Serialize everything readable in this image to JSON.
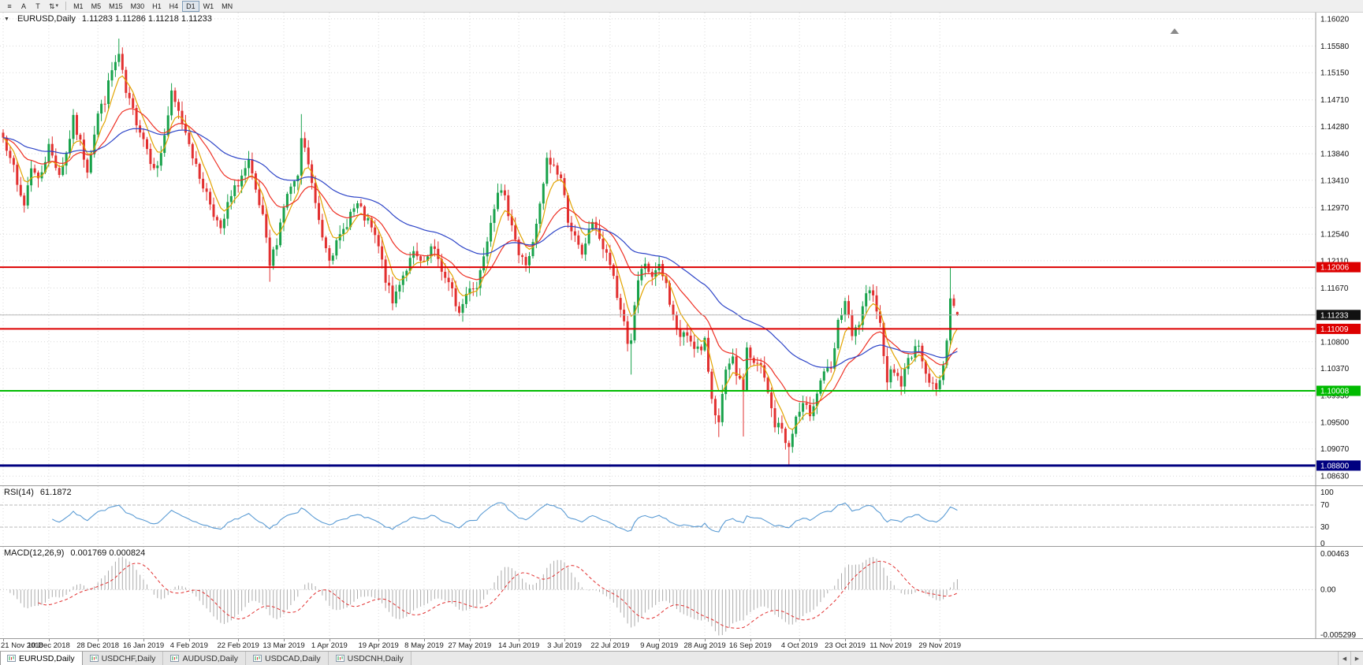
{
  "toolbar": {
    "icons": {
      "menu": "≡",
      "a": "A",
      "t": "T",
      "arrows": "⇅",
      "caret": "▾"
    },
    "timeframes": [
      {
        "label": "M1"
      },
      {
        "label": "M5"
      },
      {
        "label": "M15"
      },
      {
        "label": "M30"
      },
      {
        "label": "H1"
      },
      {
        "label": "H4"
      },
      {
        "label": "D1",
        "active": true
      },
      {
        "label": "W1"
      },
      {
        "label": "MN"
      }
    ]
  },
  "chart_header": {
    "collapse_icon": "▼",
    "symbol": "EURUSD,Daily",
    "ohlc": "1.11283 1.11286 1.11218 1.11233"
  },
  "rsi": {
    "title": "RSI(14)",
    "value": "61.1872",
    "period": 14,
    "color": "#5a9bd4",
    "levels": [
      30,
      70
    ],
    "axis_labels": [
      {
        "t": "100",
        "v": 100
      },
      {
        "t": "70",
        "v": 70
      },
      {
        "t": "30",
        "v": 30
      },
      {
        "t": "0",
        "v": 0
      }
    ]
  },
  "macd": {
    "title": "MACD(12,26,9)",
    "values": "0.001769 0.000824",
    "fast": 12,
    "slow": 26,
    "signal": 9,
    "axis": {
      "max": 0.00463,
      "min": -0.005299,
      "labels": [
        {
          "t": "0.00463",
          "v": 0.00463
        },
        {
          "t": "0.00",
          "v": 0
        },
        {
          "t": "-0.005299",
          "v": -0.005299
        }
      ]
    }
  },
  "tabbar": {
    "left_arrow": "◀",
    "right_arrow": "▶",
    "tabs": [
      {
        "label": "EURUSD,Daily",
        "active": true
      },
      {
        "label": "USDCHF,Daily"
      },
      {
        "label": "AUDUSD,Daily"
      },
      {
        "label": "USDCAD,Daily"
      },
      {
        "label": "USDCNH,Daily"
      }
    ]
  },
  "chart_data": {
    "type": "candlestick",
    "symbol": "EURUSD",
    "timeframe": "Daily",
    "bar_count": 273,
    "price_range": [
      1.0848,
      1.1612
    ],
    "price_axis_labels": [
      "1.16020",
      "1.15580",
      "1.15150",
      "1.14710",
      "1.14280",
      "1.13840",
      "1.13410",
      "1.12970",
      "1.12540",
      "1.12110",
      "1.11670",
      "1.11240",
      "1.10800",
      "1.10370",
      "1.09930",
      "1.09500",
      "1.09070",
      "1.08630"
    ],
    "date_axis": [
      [
        "21 Nov 2018",
        0
      ],
      [
        "10 Dec 2018",
        13
      ],
      [
        "28 Dec 2018",
        27
      ],
      [
        "16 Jan 2019",
        40
      ],
      [
        "4 Feb 2019",
        53
      ],
      [
        "22 Feb 2019",
        67
      ],
      [
        "13 Mar 2019",
        80
      ],
      [
        "1 Apr 2019",
        93
      ],
      [
        "19 Apr 2019",
        107
      ],
      [
        "8 May 2019",
        120
      ],
      [
        "27 May 2019",
        133
      ],
      [
        "14 Jun 2019",
        147
      ],
      [
        "3 Jul 2019",
        160
      ],
      [
        "22 Jul 2019",
        173
      ],
      [
        "9 Aug 2019",
        187
      ],
      [
        "28 Aug 2019",
        200
      ],
      [
        "16 Sep 2019",
        213
      ],
      [
        "4 Oct 2019",
        227
      ],
      [
        "23 Oct 2019",
        240
      ],
      [
        "11 Nov 2019",
        253
      ],
      [
        "29 Nov 2019",
        267
      ]
    ],
    "horizontal_lines": [
      {
        "value": 1.12006,
        "label": "1.12006",
        "color": "#dd0000",
        "width": 2
      },
      {
        "value": 1.11009,
        "label": "1.11009",
        "color": "#dd0000",
        "width": 2
      },
      {
        "value": 1.10008,
        "label": "1.10008",
        "color": "#00bb00",
        "width": 2
      },
      {
        "value": 1.088,
        "label": "1.08800",
        "color": "#000080",
        "width": 3
      }
    ],
    "current_price": {
      "value": 1.11233,
      "label": "1.11233",
      "badge": "#111111",
      "line_color": "#b8b8b8"
    },
    "candle_colors": {
      "up": "#18a24b",
      "down": "#e23030"
    },
    "moving_averages": [
      {
        "type": "ema",
        "period": 6,
        "color": "#e2a400"
      },
      {
        "type": "ema",
        "period": 20,
        "color": "#ee3024"
      },
      {
        "type": "ema",
        "period": 52,
        "color": "#2e45c8"
      }
    ],
    "waypoints": [
      [
        0,
        1.141
      ],
      [
        2,
        1.1385
      ],
      [
        4,
        1.133
      ],
      [
        6,
        1.1302
      ],
      [
        8,
        1.1365
      ],
      [
        10,
        1.134
      ],
      [
        13,
        1.1395
      ],
      [
        16,
        1.1352
      ],
      [
        18,
        1.1385
      ],
      [
        20,
        1.1438
      ],
      [
        22,
        1.14
      ],
      [
        24,
        1.136
      ],
      [
        27,
        1.1448
      ],
      [
        29,
        1.1472
      ],
      [
        31,
        1.1518
      ],
      [
        33,
        1.1542
      ],
      [
        35,
        1.148
      ],
      [
        37,
        1.1452
      ],
      [
        40,
        1.141
      ],
      [
        42,
        1.1376
      ],
      [
        44,
        1.136
      ],
      [
        46,
        1.1415
      ],
      [
        48,
        1.1478
      ],
      [
        50,
        1.145
      ],
      [
        53,
        1.1406
      ],
      [
        55,
        1.136
      ],
      [
        58,
        1.132
      ],
      [
        60,
        1.129
      ],
      [
        62,
        1.1256
      ],
      [
        64,
        1.13
      ],
      [
        67,
        1.1338
      ],
      [
        70,
        1.1368
      ],
      [
        72,
        1.132
      ],
      [
        74,
        1.1278
      ],
      [
        76,
        1.1202
      ],
      [
        78,
        1.1245
      ],
      [
        80,
        1.13
      ],
      [
        82,
        1.133
      ],
      [
        84,
        1.134
      ],
      [
        85,
        1.1408
      ],
      [
        87,
        1.1368
      ],
      [
        89,
        1.13
      ],
      [
        91,
        1.1252
      ],
      [
        93,
        1.122
      ],
      [
        95,
        1.1236
      ],
      [
        97,
        1.126
      ],
      [
        99,
        1.1288
      ],
      [
        101,
        1.13
      ],
      [
        103,
        1.128
      ],
      [
        105,
        1.1262
      ],
      [
        107,
        1.1232
      ],
      [
        109,
        1.1182
      ],
      [
        111,
        1.1142
      ],
      [
        113,
        1.1178
      ],
      [
        115,
        1.12
      ],
      [
        117,
        1.122
      ],
      [
        120,
        1.1202
      ],
      [
        122,
        1.123
      ],
      [
        124,
        1.1214
      ],
      [
        126,
        1.1182
      ],
      [
        128,
        1.116
      ],
      [
        130,
        1.1126
      ],
      [
        133,
        1.1172
      ],
      [
        135,
        1.1168
      ],
      [
        137,
        1.1224
      ],
      [
        139,
        1.1278
      ],
      [
        141,
        1.1328
      ],
      [
        143,
        1.1308
      ],
      [
        145,
        1.1274
      ],
      [
        147,
        1.122
      ],
      [
        149,
        1.1206
      ],
      [
        151,
        1.1236
      ],
      [
        153,
        1.1298
      ],
      [
        155,
        1.1372
      ],
      [
        157,
        1.1364
      ],
      [
        159,
        1.1344
      ],
      [
        161,
        1.128
      ],
      [
        163,
        1.1246
      ],
      [
        165,
        1.1216
      ],
      [
        167,
        1.1264
      ],
      [
        169,
        1.1268
      ],
      [
        171,
        1.123
      ],
      [
        173,
        1.1206
      ],
      [
        175,
        1.115
      ],
      [
        177,
        1.1116
      ],
      [
        178,
        1.1076
      ],
      [
        179,
        1.1086
      ],
      [
        181,
        1.1178
      ],
      [
        183,
        1.12
      ],
      [
        185,
        1.1186
      ],
      [
        187,
        1.1198
      ],
      [
        189,
        1.1172
      ],
      [
        191,
        1.112
      ],
      [
        193,
        1.1086
      ],
      [
        195,
        1.1092
      ],
      [
        197,
        1.1076
      ],
      [
        199,
        1.1062
      ],
      [
        200,
        1.1078
      ],
      [
        202,
        1.0992
      ],
      [
        204,
        1.0946
      ],
      [
        206,
        1.103
      ],
      [
        208,
        1.1048
      ],
      [
        210,
        1.1012
      ],
      [
        211,
        1.1006
      ],
      [
        212,
        1.107
      ],
      [
        214,
        1.1042
      ],
      [
        216,
        1.104
      ],
      [
        218,
        1.0996
      ],
      [
        220,
        1.0946
      ],
      [
        222,
        1.094
      ],
      [
        224,
        1.0906
      ],
      [
        226,
        1.0958
      ],
      [
        228,
        1.0974
      ],
      [
        230,
        1.0966
      ],
      [
        232,
        1.1
      ],
      [
        234,
        1.1034
      ],
      [
        236,
        1.103
      ],
      [
        238,
        1.1108
      ],
      [
        240,
        1.1146
      ],
      [
        242,
        1.1086
      ],
      [
        244,
        1.111
      ],
      [
        246,
        1.115
      ],
      [
        248,
        1.1164
      ],
      [
        250,
        1.1106
      ],
      [
        252,
        1.1022
      ],
      [
        254,
        1.1034
      ],
      [
        256,
        1.1012
      ],
      [
        258,
        1.105
      ],
      [
        260,
        1.1074
      ],
      [
        262,
        1.1056
      ],
      [
        264,
        1.1016
      ],
      [
        266,
        1.1
      ],
      [
        267,
        1.1018
      ],
      [
        268,
        1.1042
      ],
      [
        269,
        1.1082
      ],
      [
        270,
        1.115
      ],
      [
        271,
        1.1138
      ],
      [
        272,
        1.11233
      ]
    ],
    "spikes": [
      {
        "i": 33,
        "high": 1.157
      },
      {
        "i": 76,
        "low": 1.1177
      },
      {
        "i": 85,
        "high": 1.1448
      },
      {
        "i": 179,
        "low": 1.1027
      },
      {
        "i": 204,
        "low": 1.0926
      },
      {
        "i": 211,
        "low": 1.0927
      },
      {
        "i": 224,
        "low": 1.0879
      },
      {
        "i": 270,
        "high": 1.12
      }
    ],
    "last_candle": {
      "o": 1.11283,
      "h": 1.11286,
      "l": 1.11218,
      "c": 1.11233
    }
  }
}
